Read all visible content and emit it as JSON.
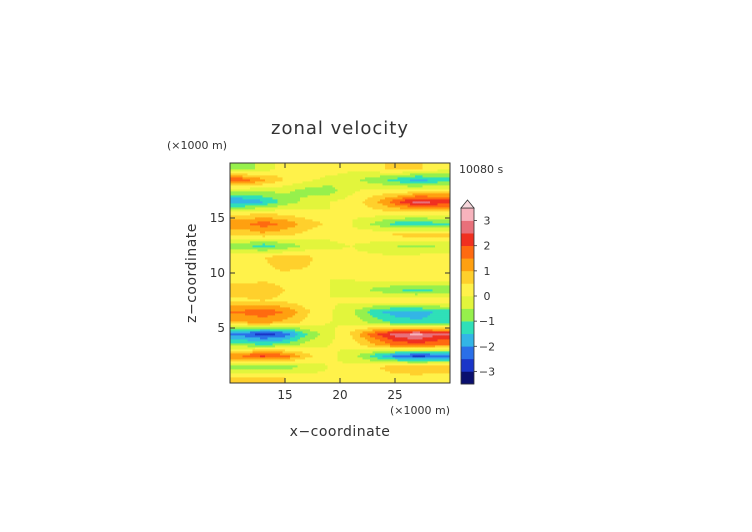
{
  "chart_data": {
    "type": "heatmap",
    "title": "zonal velocity",
    "xlabel": "x−coordinate",
    "ylabel": "z−coordinate",
    "x_unit": "(×1000 m)",
    "y_unit": "(×1000 m)",
    "time_label": "10080 s",
    "xlim": [
      10,
      30
    ],
    "ylim": [
      0,
      20
    ],
    "x_ticks": [
      "15",
      "20",
      "25"
    ],
    "x_tick_values": [
      15,
      20,
      25
    ],
    "y_ticks": [
      "5",
      "10",
      "15"
    ],
    "y_tick_values": [
      5,
      10,
      15
    ],
    "colorbar": {
      "range": [
        -3.5,
        3.5
      ],
      "ticks": [
        "3",
        "2",
        "1",
        "0",
        "−1",
        "−2",
        "−3"
      ],
      "tick_values": [
        3,
        2,
        1,
        0,
        -1,
        -2,
        -3
      ],
      "colors": [
        "#0a0f6e",
        "#1a35c8",
        "#2a6fe8",
        "#33b5e6",
        "#2fe0b8",
        "#96f04c",
        "#e2f53c",
        "#fff24a",
        "#ffd02c",
        "#ffa010",
        "#ff6a10",
        "#f03020",
        "#e8707a",
        "#f7b3bd"
      ]
    },
    "z_grid_x_centers_km": [
      11,
      13,
      15,
      17,
      19,
      21,
      23,
      25,
      27,
      29
    ],
    "z_grid_z_centers_km": [
      0.5,
      1.5,
      2.5,
      3.5,
      4.5,
      5.5,
      6.5,
      7.5,
      8.5,
      9.5,
      10.5,
      11.5,
      12.5,
      13.5,
      14.5,
      15.5,
      16.5,
      17.5,
      18.5,
      19.5
    ],
    "z_values": [
      [
        0.6,
        0.7,
        0.5,
        0.3,
        0.1,
        0.1,
        0.2,
        0.3,
        0.3,
        0.2
      ],
      [
        -0.8,
        -1.0,
        -0.8,
        -0.4,
        0.0,
        0.1,
        0.4,
        0.8,
        1.0,
        0.9
      ],
      [
        1.6,
        2.2,
        1.8,
        0.7,
        0.1,
        -0.2,
        -1.2,
        -2.2,
        -2.8,
        -2.4
      ],
      [
        -0.8,
        -1.0,
        -0.8,
        -0.3,
        0.0,
        0.1,
        0.9,
        1.6,
        1.8,
        1.5
      ],
      [
        -2.2,
        -2.8,
        -2.4,
        -1.0,
        -0.2,
        0.6,
        1.8,
        2.8,
        3.2,
        2.6
      ],
      [
        0.9,
        1.1,
        0.8,
        0.3,
        0.0,
        -0.1,
        -0.6,
        -1.1,
        -1.4,
        -1.2
      ],
      [
        1.6,
        1.9,
        1.5,
        0.6,
        0.1,
        -0.4,
        -1.3,
        -1.8,
        -1.8,
        -1.4
      ],
      [
        0.4,
        0.5,
        0.4,
        0.2,
        0.0,
        0.1,
        0.3,
        0.5,
        0.5,
        0.4
      ],
      [
        0.7,
        0.8,
        0.5,
        0.2,
        0.0,
        -0.2,
        -0.6,
        -1.0,
        -1.2,
        -1.0
      ],
      [
        0.3,
        0.4,
        0.3,
        0.1,
        0.0,
        0.0,
        0.2,
        0.4,
        0.5,
        0.4
      ],
      [
        0.2,
        0.4,
        0.6,
        0.5,
        0.3,
        0.2,
        0.3,
        0.4,
        0.4,
        0.3
      ],
      [
        0.3,
        0.5,
        0.7,
        0.6,
        0.2,
        0.1,
        0.1,
        0.1,
        0.2,
        0.2
      ],
      [
        -0.8,
        -1.3,
        -0.9,
        -0.4,
        -0.1,
        0.0,
        -0.2,
        -0.5,
        -0.7,
        -0.5
      ],
      [
        0.5,
        0.8,
        0.6,
        0.3,
        0.1,
        0.2,
        0.4,
        0.6,
        0.8,
        0.7
      ],
      [
        1.4,
        1.8,
        1.4,
        0.8,
        0.4,
        0.0,
        -0.6,
        -1.2,
        -1.4,
        -1.1
      ],
      [
        0.3,
        0.4,
        0.3,
        0.1,
        0.0,
        0.1,
        0.3,
        0.3,
        0.3,
        0.2
      ],
      [
        -2.0,
        -1.6,
        -0.8,
        -0.3,
        0.0,
        0.2,
        0.8,
        1.8,
        2.8,
        2.5
      ],
      [
        -0.5,
        -0.4,
        -0.4,
        -0.7,
        -0.8,
        -0.1,
        0.2,
        0.1,
        0.3,
        0.4
      ],
      [
        1.9,
        1.1,
        0.5,
        0.1,
        -0.2,
        -0.3,
        -0.8,
        -1.2,
        -1.8,
        -1.4
      ],
      [
        -0.8,
        -0.3,
        0.2,
        0.5,
        0.3,
        0.1,
        0.3,
        0.7,
        0.6,
        0.2
      ]
    ]
  }
}
